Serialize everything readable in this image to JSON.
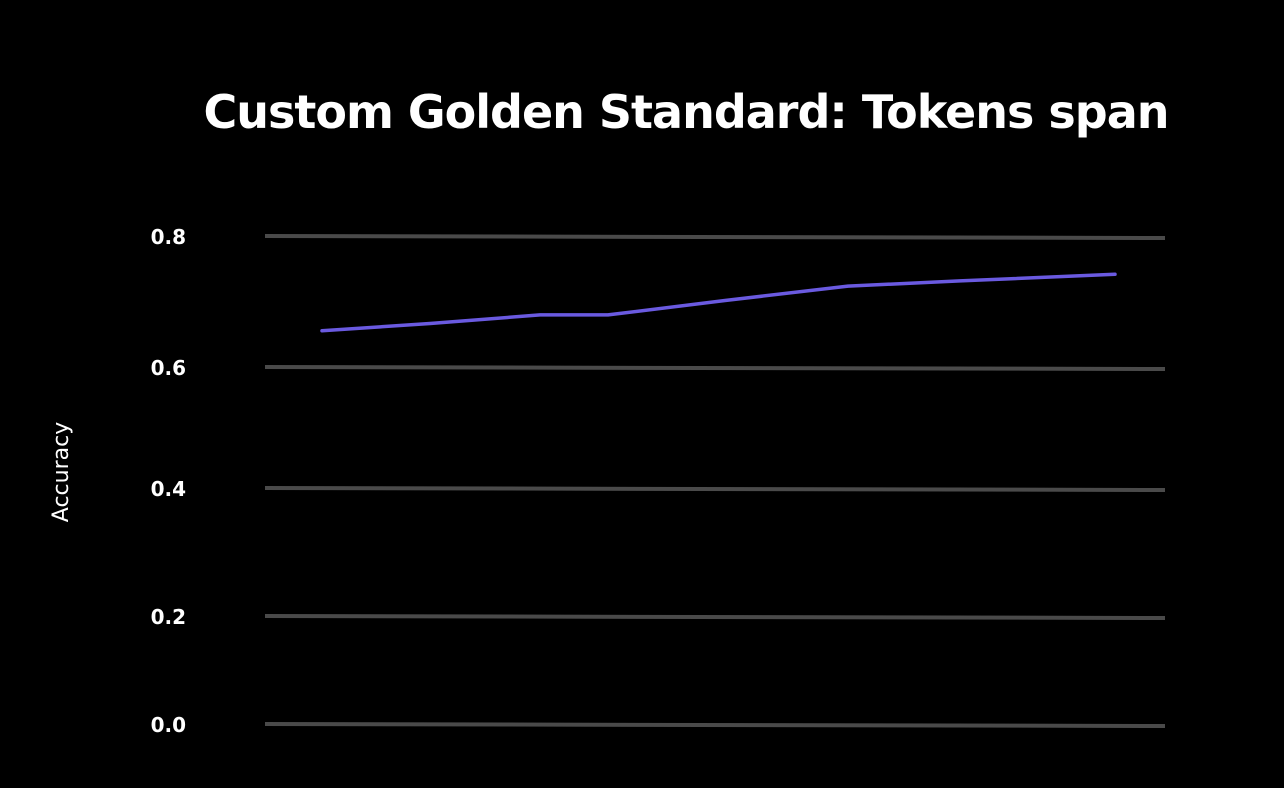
{
  "chart_data": {
    "type": "line",
    "title": "Custom Golden Standard: Tokens span",
    "xlabel": "",
    "ylabel": "Accuracy",
    "ylim": [
      0.0,
      0.8
    ],
    "yticks": [
      "0.0",
      "0.2",
      "0.4",
      "0.6",
      "0.8"
    ],
    "grid": true,
    "series": [
      {
        "color": "#6a5ae0",
        "values": [
          0.657,
          0.668,
          0.681,
          0.681,
          0.703,
          0.725,
          0.733,
          0.743
        ]
      }
    ]
  }
}
